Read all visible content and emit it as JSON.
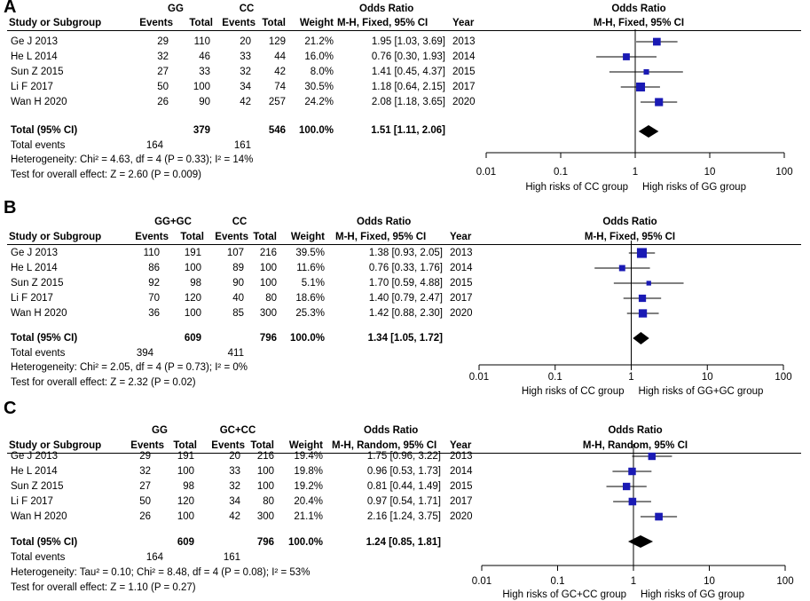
{
  "chart_data": [
    {
      "type": "forest",
      "panel_label": "A",
      "group1": "GG",
      "group2": "CC",
      "col_headers": {
        "study": "Study or Subgroup",
        "events": "Events",
        "total": "Total",
        "weight": "Weight",
        "method_top": "Odds Ratio",
        "method": "M-H, Fixed, 95% CI",
        "year": "Year"
      },
      "plot_header": {
        "top": "Odds Ratio",
        "method": "M-H, Fixed, 95% CI"
      },
      "studies": [
        {
          "name": "Ge J 2013",
          "e1": "29",
          "t1": "110",
          "e2": "20",
          "t2": "129",
          "weight": "21.2%",
          "ci_text": "1.95 [1.03, 3.69]",
          "year": "2013",
          "or": 1.95,
          "lo": 1.03,
          "hi": 3.69,
          "w": 21.2
        },
        {
          "name": "He L 2014",
          "e1": "32",
          "t1": "46",
          "e2": "33",
          "t2": "44",
          "weight": "16.0%",
          "ci_text": "0.76 [0.30, 1.93]",
          "year": "2014",
          "or": 0.76,
          "lo": 0.3,
          "hi": 1.93,
          "w": 16.0
        },
        {
          "name": "Sun Z 2015",
          "e1": "27",
          "t1": "33",
          "e2": "32",
          "t2": "42",
          "weight": "8.0%",
          "ci_text": "1.41 [0.45, 4.37]",
          "year": "2015",
          "or": 1.41,
          "lo": 0.45,
          "hi": 4.37,
          "w": 8.0
        },
        {
          "name": "Li F 2017",
          "e1": "50",
          "t1": "100",
          "e2": "34",
          "t2": "74",
          "weight": "30.5%",
          "ci_text": "1.18 [0.64, 2.15]",
          "year": "2017",
          "or": 1.18,
          "lo": 0.64,
          "hi": 2.15,
          "w": 30.5
        },
        {
          "name": "Wan H 2020",
          "e1": "26",
          "t1": "90",
          "e2": "42",
          "t2": "257",
          "weight": "24.2%",
          "ci_text": "2.08 [1.18, 3.65]",
          "year": "2020",
          "or": 2.08,
          "lo": 1.18,
          "hi": 3.65,
          "w": 24.2
        }
      ],
      "total": {
        "label": "Total (95% CI)",
        "t1": "379",
        "t2": "546",
        "weight": "100.0%",
        "ci_text": "1.51 [1.11, 2.06]",
        "or": 1.51,
        "lo": 1.11,
        "hi": 2.06
      },
      "total_events": {
        "label": "Total events",
        "e1": "164",
        "e2": "161"
      },
      "heterogeneity": "Heterogeneity: Chi² = 4.63, df = 4 (P = 0.33); I² = 14%",
      "overall": "Test for overall effect: Z = 2.60 (P = 0.009)",
      "axis_ticks": [
        "0.01",
        "0.1",
        "1",
        "10",
        "100"
      ],
      "xlim": [
        0.01,
        100
      ],
      "favours": {
        "left": "High risks of CC group",
        "right": "High risks of GG group"
      }
    },
    {
      "type": "forest",
      "panel_label": "B",
      "group1": "GG+GC",
      "group2": "CC",
      "col_headers": {
        "study": "Study or Subgroup",
        "events": "Events",
        "total": "Total",
        "weight": "Weight",
        "method_top": "Odds Ratio",
        "method": "M-H, Fixed, 95% CI",
        "year": "Year"
      },
      "plot_header": {
        "top": "Odds Ratio",
        "method": "M-H, Fixed, 95% CI"
      },
      "studies": [
        {
          "name": "Ge J 2013",
          "e1": "110",
          "t1": "191",
          "e2": "107",
          "t2": "216",
          "weight": "39.5%",
          "ci_text": "1.38 [0.93, 2.05]",
          "year": "2013",
          "or": 1.38,
          "lo": 0.93,
          "hi": 2.05,
          "w": 39.5
        },
        {
          "name": "He L 2014",
          "e1": "86",
          "t1": "100",
          "e2": "89",
          "t2": "100",
          "weight": "11.6%",
          "ci_text": "0.76 [0.33, 1.76]",
          "year": "2014",
          "or": 0.76,
          "lo": 0.33,
          "hi": 1.76,
          "w": 11.6
        },
        {
          "name": "Sun Z 2015",
          "e1": "92",
          "t1": "98",
          "e2": "90",
          "t2": "100",
          "weight": "5.1%",
          "ci_text": "1.70 [0.59, 4.88]",
          "year": "2015",
          "or": 1.7,
          "lo": 0.59,
          "hi": 4.88,
          "w": 5.1
        },
        {
          "name": "Li F 2017",
          "e1": "70",
          "t1": "120",
          "e2": "40",
          "t2": "80",
          "weight": "18.6%",
          "ci_text": "1.40 [0.79, 2.47]",
          "year": "2017",
          "or": 1.4,
          "lo": 0.79,
          "hi": 2.47,
          "w": 18.6
        },
        {
          "name": "Wan H 2020",
          "e1": "36",
          "t1": "100",
          "e2": "85",
          "t2": "300",
          "weight": "25.3%",
          "ci_text": "1.42 [0.88, 2.30]",
          "year": "2020",
          "or": 1.42,
          "lo": 0.88,
          "hi": 2.3,
          "w": 25.3
        }
      ],
      "total": {
        "label": "Total (95% CI)",
        "t1": "609",
        "t2": "796",
        "weight": "100.0%",
        "ci_text": "1.34 [1.05, 1.72]",
        "or": 1.34,
        "lo": 1.05,
        "hi": 1.72
      },
      "total_events": {
        "label": "Total events",
        "e1": "394",
        "e2": "411"
      },
      "heterogeneity": "Heterogeneity: Chi² = 2.05, df = 4 (P = 0.73); I² = 0%",
      "overall": "Test for overall effect: Z = 2.32 (P = 0.02)",
      "axis_ticks": [
        "0.01",
        "0.1",
        "1",
        "10",
        "100"
      ],
      "xlim": [
        0.01,
        100
      ],
      "favours": {
        "left": "High risks of CC group",
        "right": "High risks of GG+GC group"
      }
    },
    {
      "type": "forest",
      "panel_label": "C",
      "group1": "GG",
      "group2": "GC+CC",
      "col_headers": {
        "study": "Study or Subgroup",
        "events": "Events",
        "total": "Total",
        "weight": "Weight",
        "method_top": "Odds Ratio",
        "method": "M-H, Random, 95% CI",
        "year": "Year"
      },
      "plot_header": {
        "top": "Odds Ratio",
        "method": "M-H, Random, 95% CI"
      },
      "studies": [
        {
          "name": "Ge J 2013",
          "e1": "29",
          "t1": "191",
          "e2": "20",
          "t2": "216",
          "weight": "19.4%",
          "ci_text": "1.75 [0.96, 3.22]",
          "year": "2013",
          "or": 1.75,
          "lo": 0.96,
          "hi": 3.22,
          "w": 19.4
        },
        {
          "name": "He L 2014",
          "e1": "32",
          "t1": "100",
          "e2": "33",
          "t2": "100",
          "weight": "19.8%",
          "ci_text": "0.96 [0.53, 1.73]",
          "year": "2014",
          "or": 0.96,
          "lo": 0.53,
          "hi": 1.73,
          "w": 19.8
        },
        {
          "name": "Sun Z 2015",
          "e1": "27",
          "t1": "98",
          "e2": "32",
          "t2": "100",
          "weight": "19.2%",
          "ci_text": "0.81 [0.44, 1.49]",
          "year": "2015",
          "or": 0.81,
          "lo": 0.44,
          "hi": 1.49,
          "w": 19.2
        },
        {
          "name": "Li F 2017",
          "e1": "50",
          "t1": "120",
          "e2": "34",
          "t2": "80",
          "weight": "20.4%",
          "ci_text": "0.97 [0.54, 1.71]",
          "year": "2017",
          "or": 0.97,
          "lo": 0.54,
          "hi": 1.71,
          "w": 20.4
        },
        {
          "name": "Wan H 2020",
          "e1": "26",
          "t1": "100",
          "e2": "42",
          "t2": "300",
          "weight": "21.1%",
          "ci_text": "2.16 [1.24, 3.75]",
          "year": "2020",
          "or": 2.16,
          "lo": 1.24,
          "hi": 3.75,
          "w": 21.1
        }
      ],
      "total": {
        "label": "Total (95% CI)",
        "t1": "609",
        "t2": "796",
        "weight": "100.0%",
        "ci_text": "1.24 [0.85, 1.81]",
        "or": 1.24,
        "lo": 0.85,
        "hi": 1.81
      },
      "total_events": {
        "label": "Total events",
        "e1": "164",
        "e2": "161"
      },
      "heterogeneity": "Heterogeneity: Tau² = 0.10; Chi² = 8.48, df = 4 (P = 0.08); I² = 53%",
      "overall": "Test for overall effect: Z = 1.10 (P = 0.27)",
      "axis_ticks": [
        "0.01",
        "0.1",
        "1",
        "10",
        "100"
      ],
      "xlim": [
        0.01,
        100
      ],
      "favours": {
        "left": "High risks of GC+CC group",
        "right": "High risks of GG group"
      }
    }
  ],
  "colors": {
    "marker": "#1a1ab4",
    "ink": "#000000",
    "background": "#ffffff"
  }
}
